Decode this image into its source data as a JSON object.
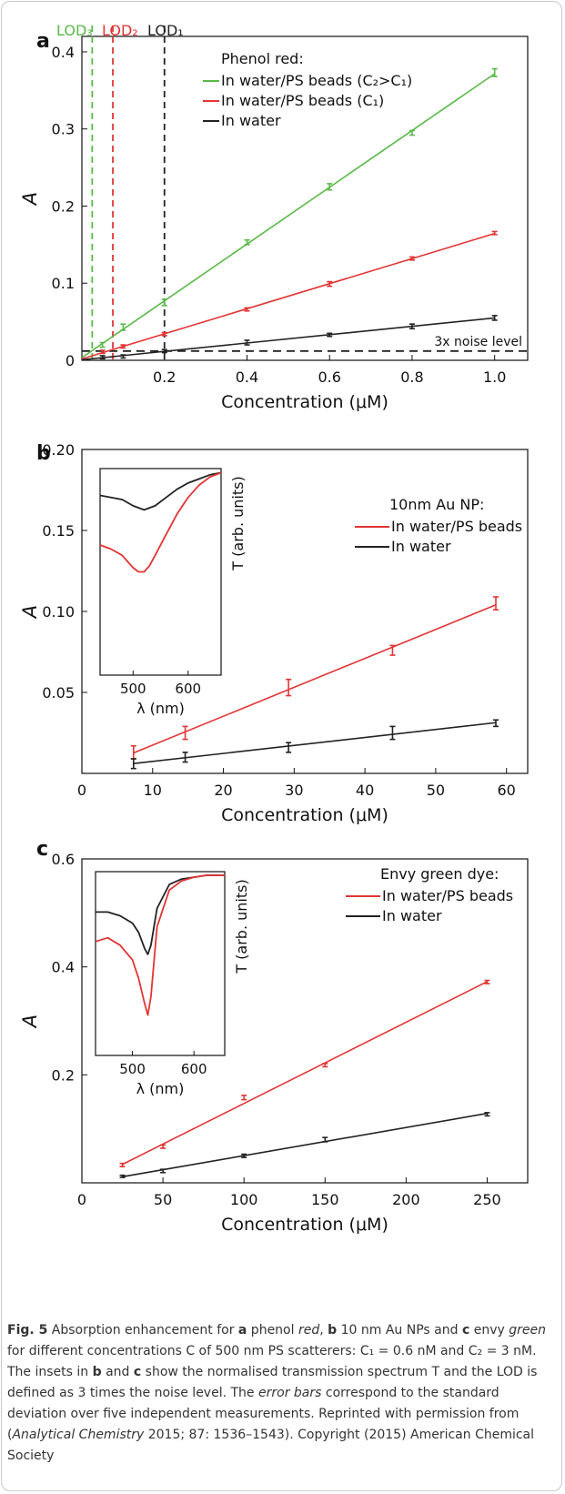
{
  "chart_data": [
    {
      "type": "line",
      "panel_label": "a",
      "xlabel": "Concentration (μM)",
      "ylabel": "A",
      "xlim": [
        0,
        1.08
      ],
      "ylim": [
        0,
        0.42
      ],
      "xticks": [
        "0.2",
        "0.4",
        "0.6",
        "0.8",
        "1.0"
      ],
      "yticks": [
        "0",
        "0.1",
        "0.2",
        "0.3",
        "0.4"
      ],
      "legend_title": "Phenol red:",
      "legend_position": "top-right",
      "x": [
        0.05,
        0.1,
        0.2,
        0.4,
        0.6,
        0.8,
        1.0
      ],
      "series": [
        {
          "name": "In water/PS beads (C₂>C₁)",
          "color": "#5ab848",
          "values": [
            0.02,
            0.043,
            0.075,
            0.153,
            0.225,
            0.295,
            0.373
          ],
          "errors": [
            0.003,
            0.004,
            0.004,
            0.003,
            0.004,
            0.003,
            0.005
          ]
        },
        {
          "name": "In water/PS beads (C₁)",
          "color": "#e23434",
          "values": [
            0.011,
            0.018,
            0.034,
            0.066,
            0.099,
            0.132,
            0.165
          ],
          "errors": [
            0.002,
            0.002,
            0.002,
            0.002,
            0.003,
            0.002,
            0.002
          ]
        },
        {
          "name": "In water",
          "color": "#222222",
          "values": [
            0.004,
            0.005,
            0.012,
            0.023,
            0.033,
            0.044,
            0.055
          ],
          "errors": [
            0.002,
            0.002,
            0.002,
            0.003,
            0.002,
            0.003,
            0.003
          ]
        }
      ],
      "vlines": [
        {
          "label": "LOD₃",
          "x": 0.025,
          "color": "#5ab848"
        },
        {
          "label": "LOD₂",
          "x": 0.075,
          "color": "#e23434"
        },
        {
          "label": "LOD₁",
          "x": 0.2,
          "color": "#222222"
        }
      ],
      "hline": {
        "label": "3x noise level",
        "y": 0.012,
        "color": "#222222"
      }
    },
    {
      "type": "line",
      "panel_label": "b",
      "xlabel": "Concentration (μM)",
      "ylabel": "A",
      "xlim": [
        0,
        63
      ],
      "ylim": [
        0,
        0.2
      ],
      "xticks": [
        "0",
        "10",
        "20",
        "30",
        "40",
        "50",
        "60"
      ],
      "yticks": [
        "0.05",
        "0.10",
        "0.15",
        "0.20"
      ],
      "legend_title": "10nm Au NP:",
      "legend_position": "top-right",
      "x": [
        7.3,
        14.6,
        29.2,
        43.9,
        58.5
      ],
      "series": [
        {
          "name": "In water/PS beads",
          "color": "#e23434",
          "values": [
            0.013,
            0.025,
            0.053,
            0.076,
            0.105
          ],
          "errors": [
            0.004,
            0.004,
            0.005,
            0.003,
            0.004
          ]
        },
        {
          "name": "In water",
          "color": "#222222",
          "values": [
            0.006,
            0.01,
            0.016,
            0.025,
            0.031
          ],
          "errors": [
            0.003,
            0.003,
            0.003,
            0.004,
            0.002
          ]
        }
      ],
      "inset": {
        "xlabel": "λ (nm)",
        "ylabel": "T (arb. units)",
        "xlim": [
          440,
          660
        ],
        "xticks": [
          "500",
          "600"
        ],
        "series": [
          {
            "name": "In water",
            "color": "#222222",
            "x": [
              440,
              460,
              480,
              500,
              520,
              540,
              560,
              580,
              600,
              620,
              640,
              660
            ],
            "values": [
              0.87,
              0.86,
              0.85,
              0.82,
              0.8,
              0.82,
              0.86,
              0.9,
              0.93,
              0.95,
              0.97,
              0.98
            ]
          },
          {
            "name": "In water/PS beads",
            "color": "#e23434",
            "x": [
              440,
              460,
              480,
              500,
              510,
              520,
              530,
              540,
              560,
              580,
              600,
              620,
              640,
              660
            ],
            "values": [
              0.63,
              0.61,
              0.58,
              0.52,
              0.5,
              0.5,
              0.53,
              0.58,
              0.68,
              0.78,
              0.86,
              0.92,
              0.96,
              0.98
            ]
          }
        ]
      }
    },
    {
      "type": "line",
      "panel_label": "c",
      "xlabel": "Concentration (μM)",
      "ylabel": "A",
      "xlim": [
        0,
        275
      ],
      "ylim": [
        0,
        0.6
      ],
      "xticks": [
        "0",
        "50",
        "100",
        "150",
        "200",
        "250"
      ],
      "yticks": [
        "0.2",
        "0.4",
        "0.6"
      ],
      "legend_title": "Envy green dye:",
      "legend_position": "top-right",
      "x": [
        25,
        50,
        100,
        150,
        250
      ],
      "series": [
        {
          "name": "In water/PS beads",
          "color": "#e23434",
          "values": [
            0.033,
            0.067,
            0.158,
            0.218,
            0.372
          ],
          "errors": [
            0.003,
            0.003,
            0.004,
            0.003,
            0.003
          ]
        },
        {
          "name": "In water",
          "color": "#222222",
          "values": [
            0.012,
            0.022,
            0.05,
            0.08,
            0.127
          ],
          "errors": [
            0.002,
            0.003,
            0.003,
            0.004,
            0.003
          ]
        }
      ],
      "inset": {
        "xlabel": "λ (nm)",
        "ylabel": "T (arb. units)",
        "xlim": [
          440,
          650
        ],
        "xticks": [
          "500",
          "600"
        ],
        "series": [
          {
            "name": "In water",
            "color": "#222222",
            "x": [
              440,
              460,
              480,
              500,
              510,
              520,
              525,
              530,
              540,
              560,
              580,
              600,
              620,
              650
            ],
            "values": [
              0.78,
              0.78,
              0.76,
              0.72,
              0.67,
              0.58,
              0.55,
              0.6,
              0.8,
              0.93,
              0.96,
              0.97,
              0.98,
              0.98
            ]
          },
          {
            "name": "In water/PS beads",
            "color": "#e23434",
            "x": [
              440,
              460,
              480,
              500,
              510,
              520,
              525,
              530,
              540,
              560,
              580,
              600,
              620,
              650
            ],
            "values": [
              0.62,
              0.64,
              0.6,
              0.52,
              0.42,
              0.28,
              0.22,
              0.32,
              0.7,
              0.9,
              0.95,
              0.97,
              0.98,
              0.98
            ]
          }
        ]
      }
    }
  ],
  "caption": {
    "fig_label": "Fig. 5",
    "parts": [
      {
        "text": "  Absorption enhancement for ",
        "style": "n"
      },
      {
        "text": "a",
        "style": "b"
      },
      {
        "text": " phenol ",
        "style": "n"
      },
      {
        "text": "red",
        "style": "i"
      },
      {
        "text": ", ",
        "style": "n"
      },
      {
        "text": "b",
        "style": "b"
      },
      {
        "text": " 10 nm Au NPs and ",
        "style": "n"
      },
      {
        "text": "c",
        "style": "b"
      },
      {
        "text": " envy ",
        "style": "n"
      },
      {
        "text": "green",
        "style": "i"
      },
      {
        "text": " for different concentrations C of 500 nm PS scatterers: C₁ = 0.6 nM and C₂ = 3 nM. The insets in ",
        "style": "n"
      },
      {
        "text": "b",
        "style": "b"
      },
      {
        "text": " and ",
        "style": "n"
      },
      {
        "text": "c",
        "style": "b"
      },
      {
        "text": " show the normalised transmission spectrum T and the LOD is defined as 3 times the noise level. The ",
        "style": "n"
      },
      {
        "text": "error bars",
        "style": "i"
      },
      {
        "text": " correspond to the standard deviation over five independent measurements. Reprinted with permission from (",
        "style": "n"
      },
      {
        "text": "Analytical Chemistry",
        "style": "i"
      },
      {
        "text": " 2015; 87: 1536–1543). Copyright (2015) American Chemical Society",
        "style": "n"
      }
    ]
  }
}
